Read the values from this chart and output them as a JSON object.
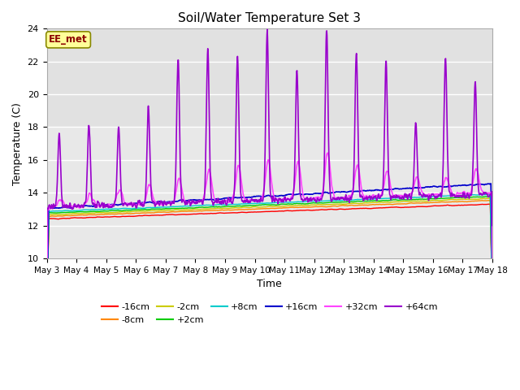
{
  "title": "Soil/Water Temperature Set 3",
  "xlabel": "Time",
  "ylabel": "Temperature (C)",
  "ylim": [
    10,
    24
  ],
  "yticks": [
    10,
    12,
    14,
    16,
    18,
    20,
    22,
    24
  ],
  "background_color": "#ffffff",
  "plot_bg_color": "#e8e8e8",
  "plot_bg_light": "#f0f0f0",
  "annotation_box": "EE_met",
  "annotation_color": "#8B0000",
  "annotation_bg": "#ffff99",
  "series": {
    "-16cm": {
      "color": "#ff0000"
    },
    "-8cm": {
      "color": "#ff8800"
    },
    "-2cm": {
      "color": "#cccc00"
    },
    "+2cm": {
      "color": "#00cc00"
    },
    "+8cm": {
      "color": "#00cccc"
    },
    "+16cm": {
      "color": "#0000cc"
    },
    "+32cm": {
      "color": "#ff44ff"
    },
    "+64cm": {
      "color": "#9900cc"
    }
  },
  "xticklabels": [
    "May 3",
    "May 4",
    "May 5",
    "May 6",
    "May 7",
    "May 8",
    "May 9",
    "May 10",
    "May 11",
    "May 12",
    "May 13",
    "May 14",
    "May 15",
    "May 16",
    "May 17",
    "May 18"
  ]
}
